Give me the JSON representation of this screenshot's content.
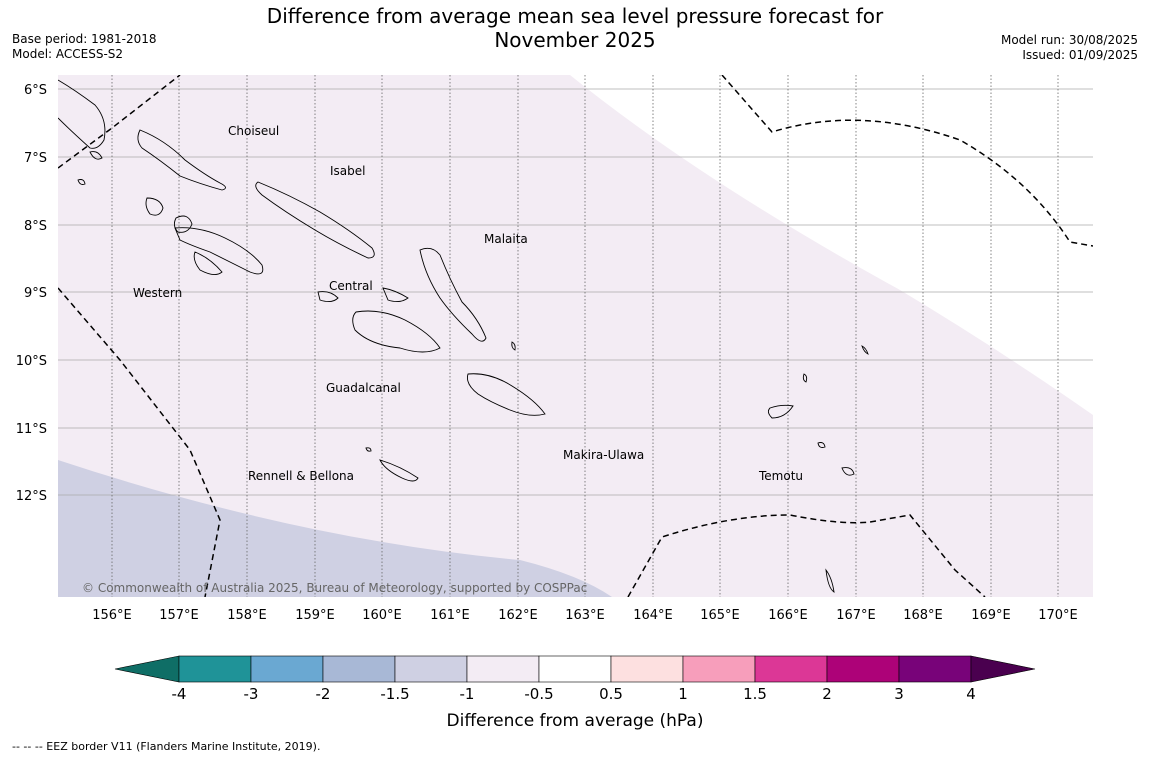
{
  "title_line1": "Difference from average mean sea level pressure forecast for",
  "title_line2": "November 2025",
  "meta_left": {
    "base_period": "Base period: 1981-2018",
    "model": "Model: ACCESS-S2"
  },
  "meta_right": {
    "model_run": "Model run: 30/08/2025",
    "issued": "Issued: 01/09/2025"
  },
  "map": {
    "lat_labels": [
      "6°S",
      "7°S",
      "8°S",
      "9°S",
      "10°S",
      "11°S",
      "12°S"
    ],
    "lon_labels": [
      "156°E",
      "157°E",
      "158°E",
      "159°E",
      "160°E",
      "161°E",
      "162°E",
      "163°E",
      "164°E",
      "165°E",
      "166°E",
      "167°E",
      "168°E",
      "169°E",
      "170°E"
    ],
    "regions": [
      {
        "name": "Choiseul"
      },
      {
        "name": "Isabel"
      },
      {
        "name": "Malaita"
      },
      {
        "name": "Western"
      },
      {
        "name": "Central"
      },
      {
        "name": "Guadalcanal"
      },
      {
        "name": "Makira-Ulawa"
      },
      {
        "name": "Rennell & Bellona"
      },
      {
        "name": "Temotu"
      }
    ],
    "copyright": "© Commonwealth of Australia 2025, Bureau of Meteorology, supported by COSPPac"
  },
  "colorbar": {
    "ticks": [
      "-4",
      "-3",
      "-2",
      "-1.5",
      "-1",
      "-0.5",
      "0.5",
      "1",
      "1.5",
      "2",
      "3",
      "4"
    ],
    "colors": [
      "#0f6e66",
      "#1f9398",
      "#6aa8d2",
      "#a8b8d6",
      "#cfd0e3",
      "#f3ecf4",
      "#ffffff",
      "#fde0e0",
      "#f79ebb",
      "#dc3796",
      "#ad0278",
      "#780379",
      "#4a004f"
    ],
    "label": "Difference from average (hPa)"
  },
  "footnote": "--  --  -- EEZ border V11 (Flanders Marine Institute, 2019)."
}
